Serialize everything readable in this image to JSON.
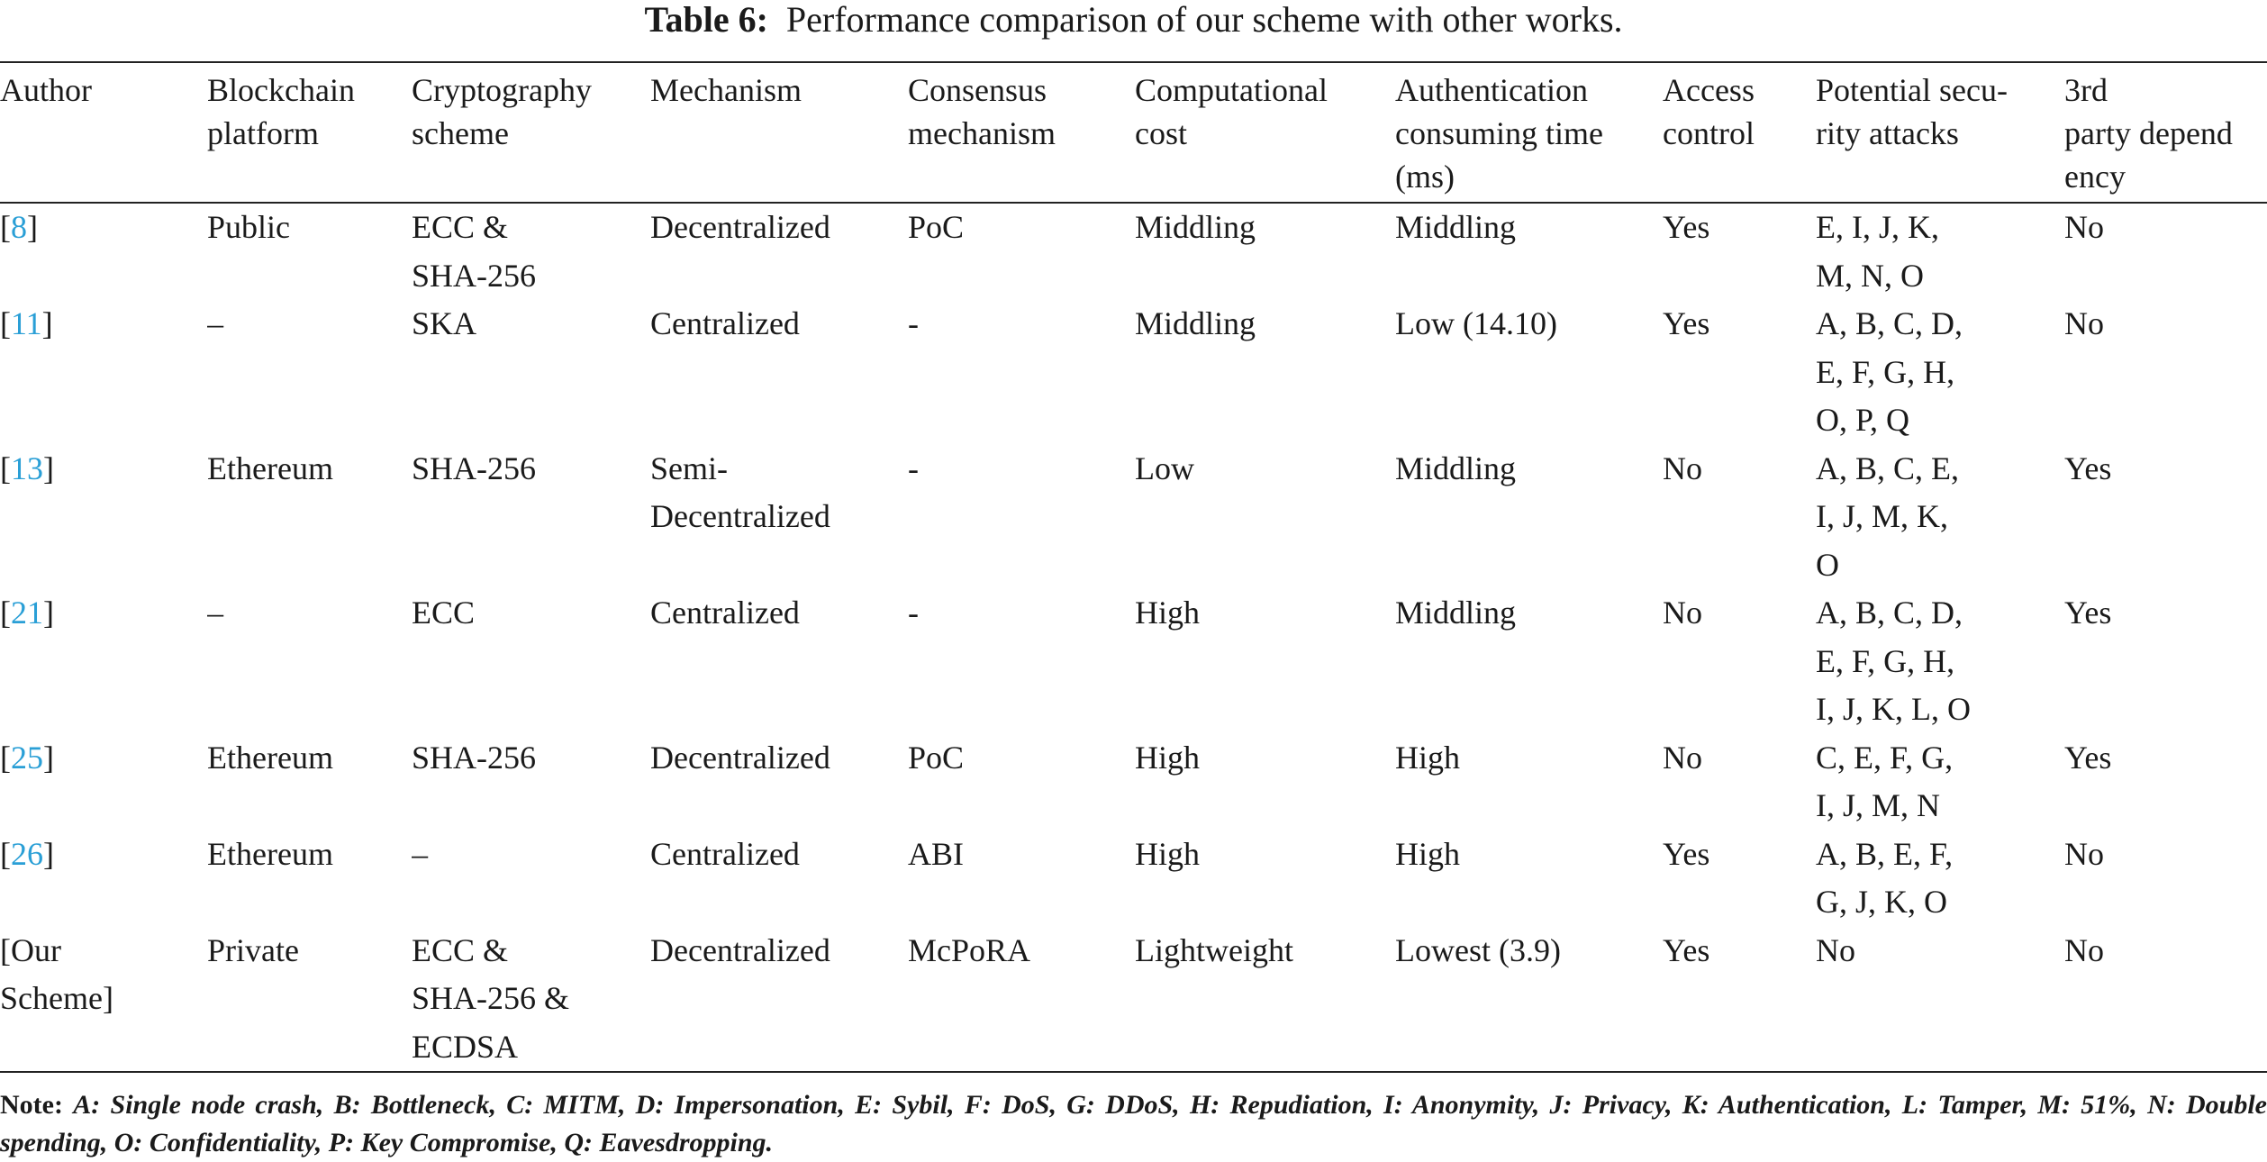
{
  "caption": {
    "label": "Table 6:",
    "text": "Performance comparison of our scheme with other works."
  },
  "table": {
    "header": [
      "Author",
      "Blockchain\nplatform",
      "Cryptography\nscheme",
      "Mechanism",
      "Consensus\nmechanism",
      "Computational\ncost",
      "Authentication\nconsuming time\n(ms)",
      "Access\ncontrol",
      "Potential secu-\nrity attacks",
      "3rd\nparty depend\nency"
    ],
    "rows": [
      {
        "author": [
          {
            "text": "[",
            "link": false
          },
          {
            "text": "8",
            "link": true
          },
          {
            "text": "]",
            "link": false
          }
        ],
        "cells": [
          "Public",
          "ECC &\nSHA-256",
          "Decentralized",
          "PoC",
          "Middling",
          "Middling",
          "Yes",
          "E, I, J, K,\nM, N, O",
          "No"
        ]
      },
      {
        "author": [
          {
            "text": "[",
            "link": false
          },
          {
            "text": "11",
            "link": true
          },
          {
            "text": "]",
            "link": false
          }
        ],
        "cells": [
          "–",
          "SKA",
          "Centralized",
          "-",
          "Middling",
          "Low (14.10)",
          "Yes",
          "A, B, C, D,\nE, F, G, H,\nO, P, Q",
          "No"
        ]
      },
      {
        "author": [
          {
            "text": "[",
            "link": false
          },
          {
            "text": "13",
            "link": true
          },
          {
            "text": "]",
            "link": false
          }
        ],
        "cells": [
          "Ethereum",
          "SHA-256",
          "Semi-\nDecentralized",
          "-",
          "Low",
          "Middling",
          "No",
          "A, B, C, E,\nI, J, M, K,\nO",
          "Yes"
        ]
      },
      {
        "author": [
          {
            "text": "[",
            "link": false
          },
          {
            "text": "21",
            "link": true
          },
          {
            "text": "]",
            "link": false
          }
        ],
        "cells": [
          "–",
          "ECC",
          "Centralized",
          "-",
          "High",
          "Middling",
          "No",
          "A, B, C, D,\nE, F, G, H,\nI, J, K, L, O",
          "Yes"
        ]
      },
      {
        "author": [
          {
            "text": "[",
            "link": false
          },
          {
            "text": "25",
            "link": true
          },
          {
            "text": "]",
            "link": false
          }
        ],
        "cells": [
          "Ethereum",
          "SHA-256",
          "Decentralized",
          "PoC",
          "High",
          "High",
          "No",
          "C, E, F, G,\nI, J, M, N",
          "Yes"
        ]
      },
      {
        "author": [
          {
            "text": "[",
            "link": false
          },
          {
            "text": "26",
            "link": true
          },
          {
            "text": "]",
            "link": false
          }
        ],
        "cells": [
          "Ethereum",
          "–",
          "Centralized",
          "ABI",
          "High",
          "High",
          "Yes",
          "A, B, E, F,\nG, J, K, O",
          "No"
        ]
      },
      {
        "author": [
          {
            "text": "[Our\nScheme]",
            "link": false
          }
        ],
        "cells": [
          "Private",
          "ECC &\nSHA-256 &\nECDSA",
          "Decentralized",
          "McPoRA",
          "Lightweight",
          "Lowest (3.9)",
          "Yes",
          "No",
          "No"
        ]
      }
    ]
  },
  "note": {
    "label": "Note:",
    "text": "A: Single node crash, B: Bottleneck, C: MITM, D: Impersonation, E: Sybil, F: DoS, G: DDoS, H: Repudiation, I: Anonymity, J: Privacy, K: Authentication, L: Tamper, M: 51%, N: Double spending, O: Confidentiality, P: Key Compromise, Q: Eavesdropping."
  }
}
